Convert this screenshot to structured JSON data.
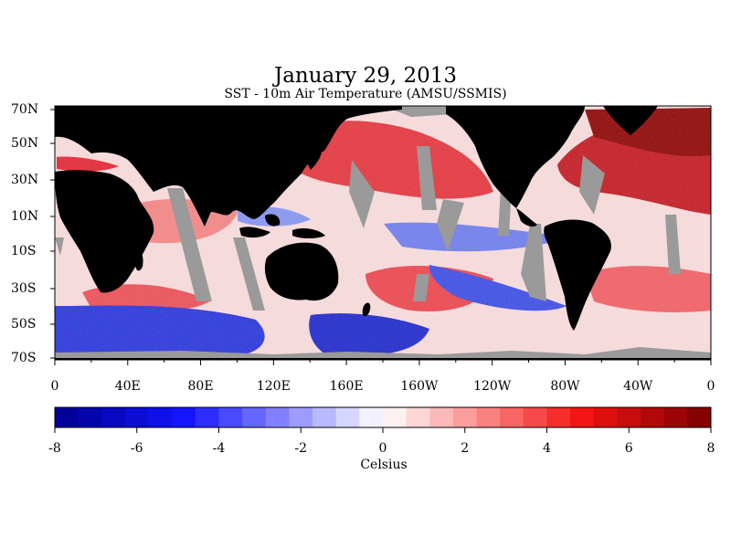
{
  "title": "January 29, 2013",
  "subtitle": "SST - 10m Air Temperature (AMSU/SSMIS)",
  "lat_labels": [
    "70N",
    "50N",
    "30N",
    "10N",
    "10S",
    "30S",
    "50S",
    "70S"
  ],
  "lon_labels": [
    "0",
    "40E",
    "80E",
    "120E",
    "160E",
    "160W",
    "120W",
    "80W",
    "40W",
    "0"
  ],
  "colorbar": {
    "ticks": [
      "-8",
      "-6",
      "-4",
      "-2",
      "0",
      "2",
      "4",
      "6",
      "8"
    ],
    "unit": "Celsius",
    "range": [
      -8,
      8
    ],
    "steps": 28,
    "cold_color": "#000090",
    "neutral_color": "#ffffff",
    "warm_color": "#7a0000"
  },
  "colors": {
    "land": "#000000",
    "no_data": "#9a9a9a",
    "positive": "#e8303a",
    "negative": "#2020d8"
  },
  "map": {
    "projection": "cylindrical equidistant",
    "lat_range": [
      "70S",
      "70N"
    ],
    "lon_range": [
      "0",
      "0"
    ]
  }
}
